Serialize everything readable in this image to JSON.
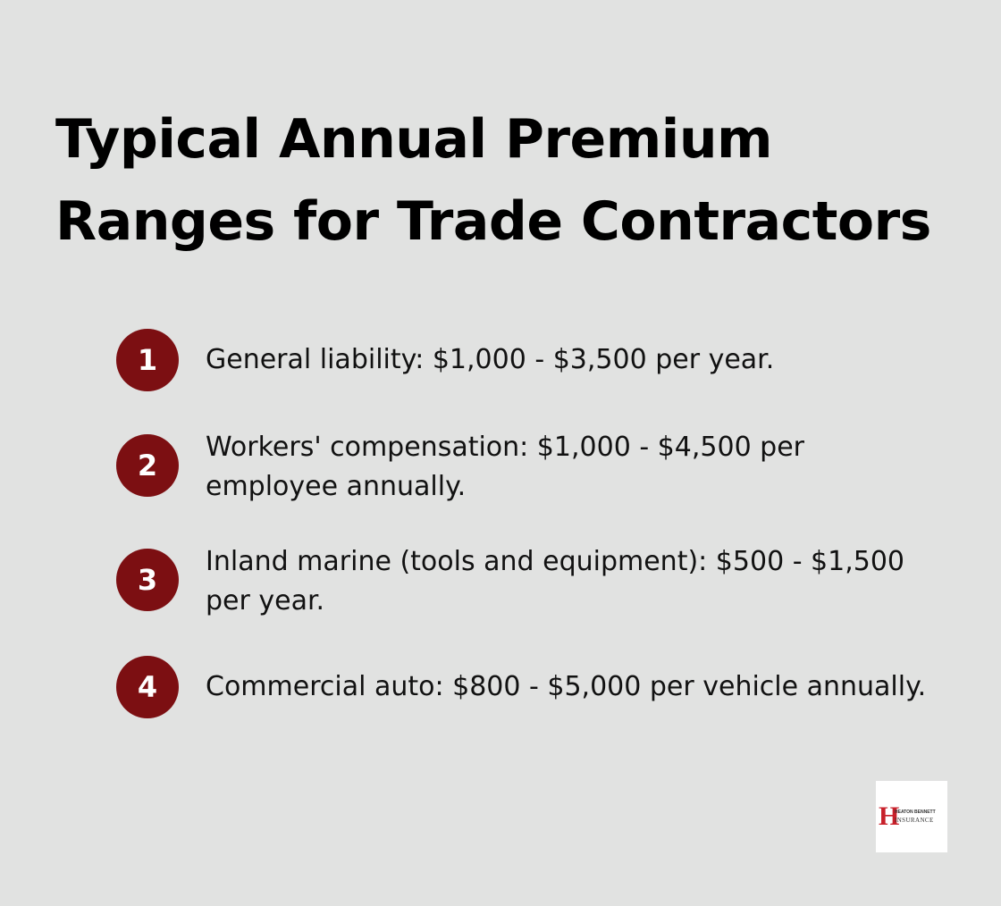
{
  "title": "Typical Annual Premium Ranges for Trade Contractors",
  "accent_color": "#7c0f12",
  "items": [
    {
      "number": "1",
      "text": "General liability: $1,000 - $3,500 per year."
    },
    {
      "number": "2",
      "text": "Workers' compensation: $1,000 - $4,500 per employee annually."
    },
    {
      "number": "3",
      "text": "Inland marine (tools and equipment): $500 - $1,500 per year."
    },
    {
      "number": "4",
      "text": "Commercial auto: $800 - $5,000 per vehicle annually."
    }
  ],
  "logo": {
    "letter": "H",
    "line1": "HEATON BENNETT",
    "line2": "INSURANCE",
    "color": "#c8202a"
  }
}
